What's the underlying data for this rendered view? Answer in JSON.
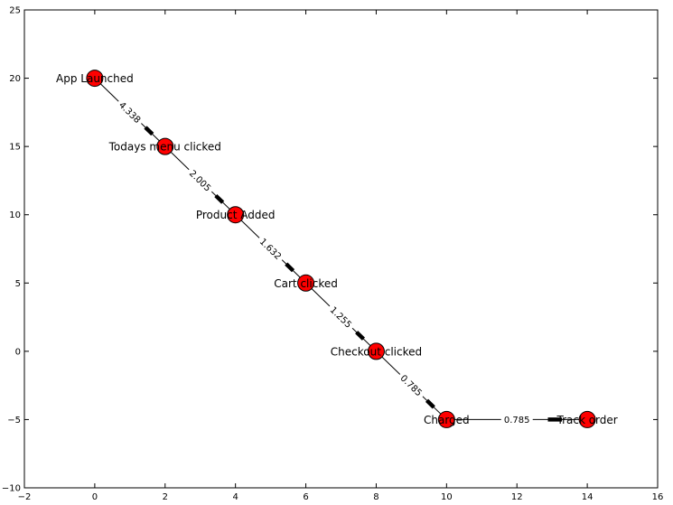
{
  "chart_data": {
    "type": "scatter",
    "title": "",
    "xlabel": "",
    "ylabel": "",
    "xlim": [
      -2,
      16
    ],
    "ylim": [
      -10,
      25
    ],
    "grid": false,
    "x_ticks": [
      -2,
      0,
      2,
      4,
      6,
      8,
      10,
      12,
      14,
      16
    ],
    "y_ticks": [
      -10,
      -5,
      0,
      5,
      10,
      15,
      20,
      25
    ],
    "node_color": "#ff0000",
    "nodes": [
      {
        "label": "App Launched",
        "x": 0,
        "y": 20
      },
      {
        "label": "Todays menu clicked",
        "x": 2,
        "y": 15
      },
      {
        "label": "Product Added",
        "x": 4,
        "y": 10
      },
      {
        "label": "Cart clicked",
        "x": 6,
        "y": 5
      },
      {
        "label": "Checkout clicked",
        "x": 8,
        "y": 0
      },
      {
        "label": "Charged",
        "x": 10,
        "y": -5
      },
      {
        "label": "Track order",
        "x": 14,
        "y": -5
      }
    ],
    "edges": [
      {
        "from": 0,
        "to": 1,
        "weight": "4.338"
      },
      {
        "from": 1,
        "to": 2,
        "weight": "2.005"
      },
      {
        "from": 2,
        "to": 3,
        "weight": "1.632"
      },
      {
        "from": 3,
        "to": 4,
        "weight": "1.255"
      },
      {
        "from": 4,
        "to": 5,
        "weight": "0.785"
      },
      {
        "from": 5,
        "to": 6,
        "weight": "0.785"
      }
    ]
  }
}
